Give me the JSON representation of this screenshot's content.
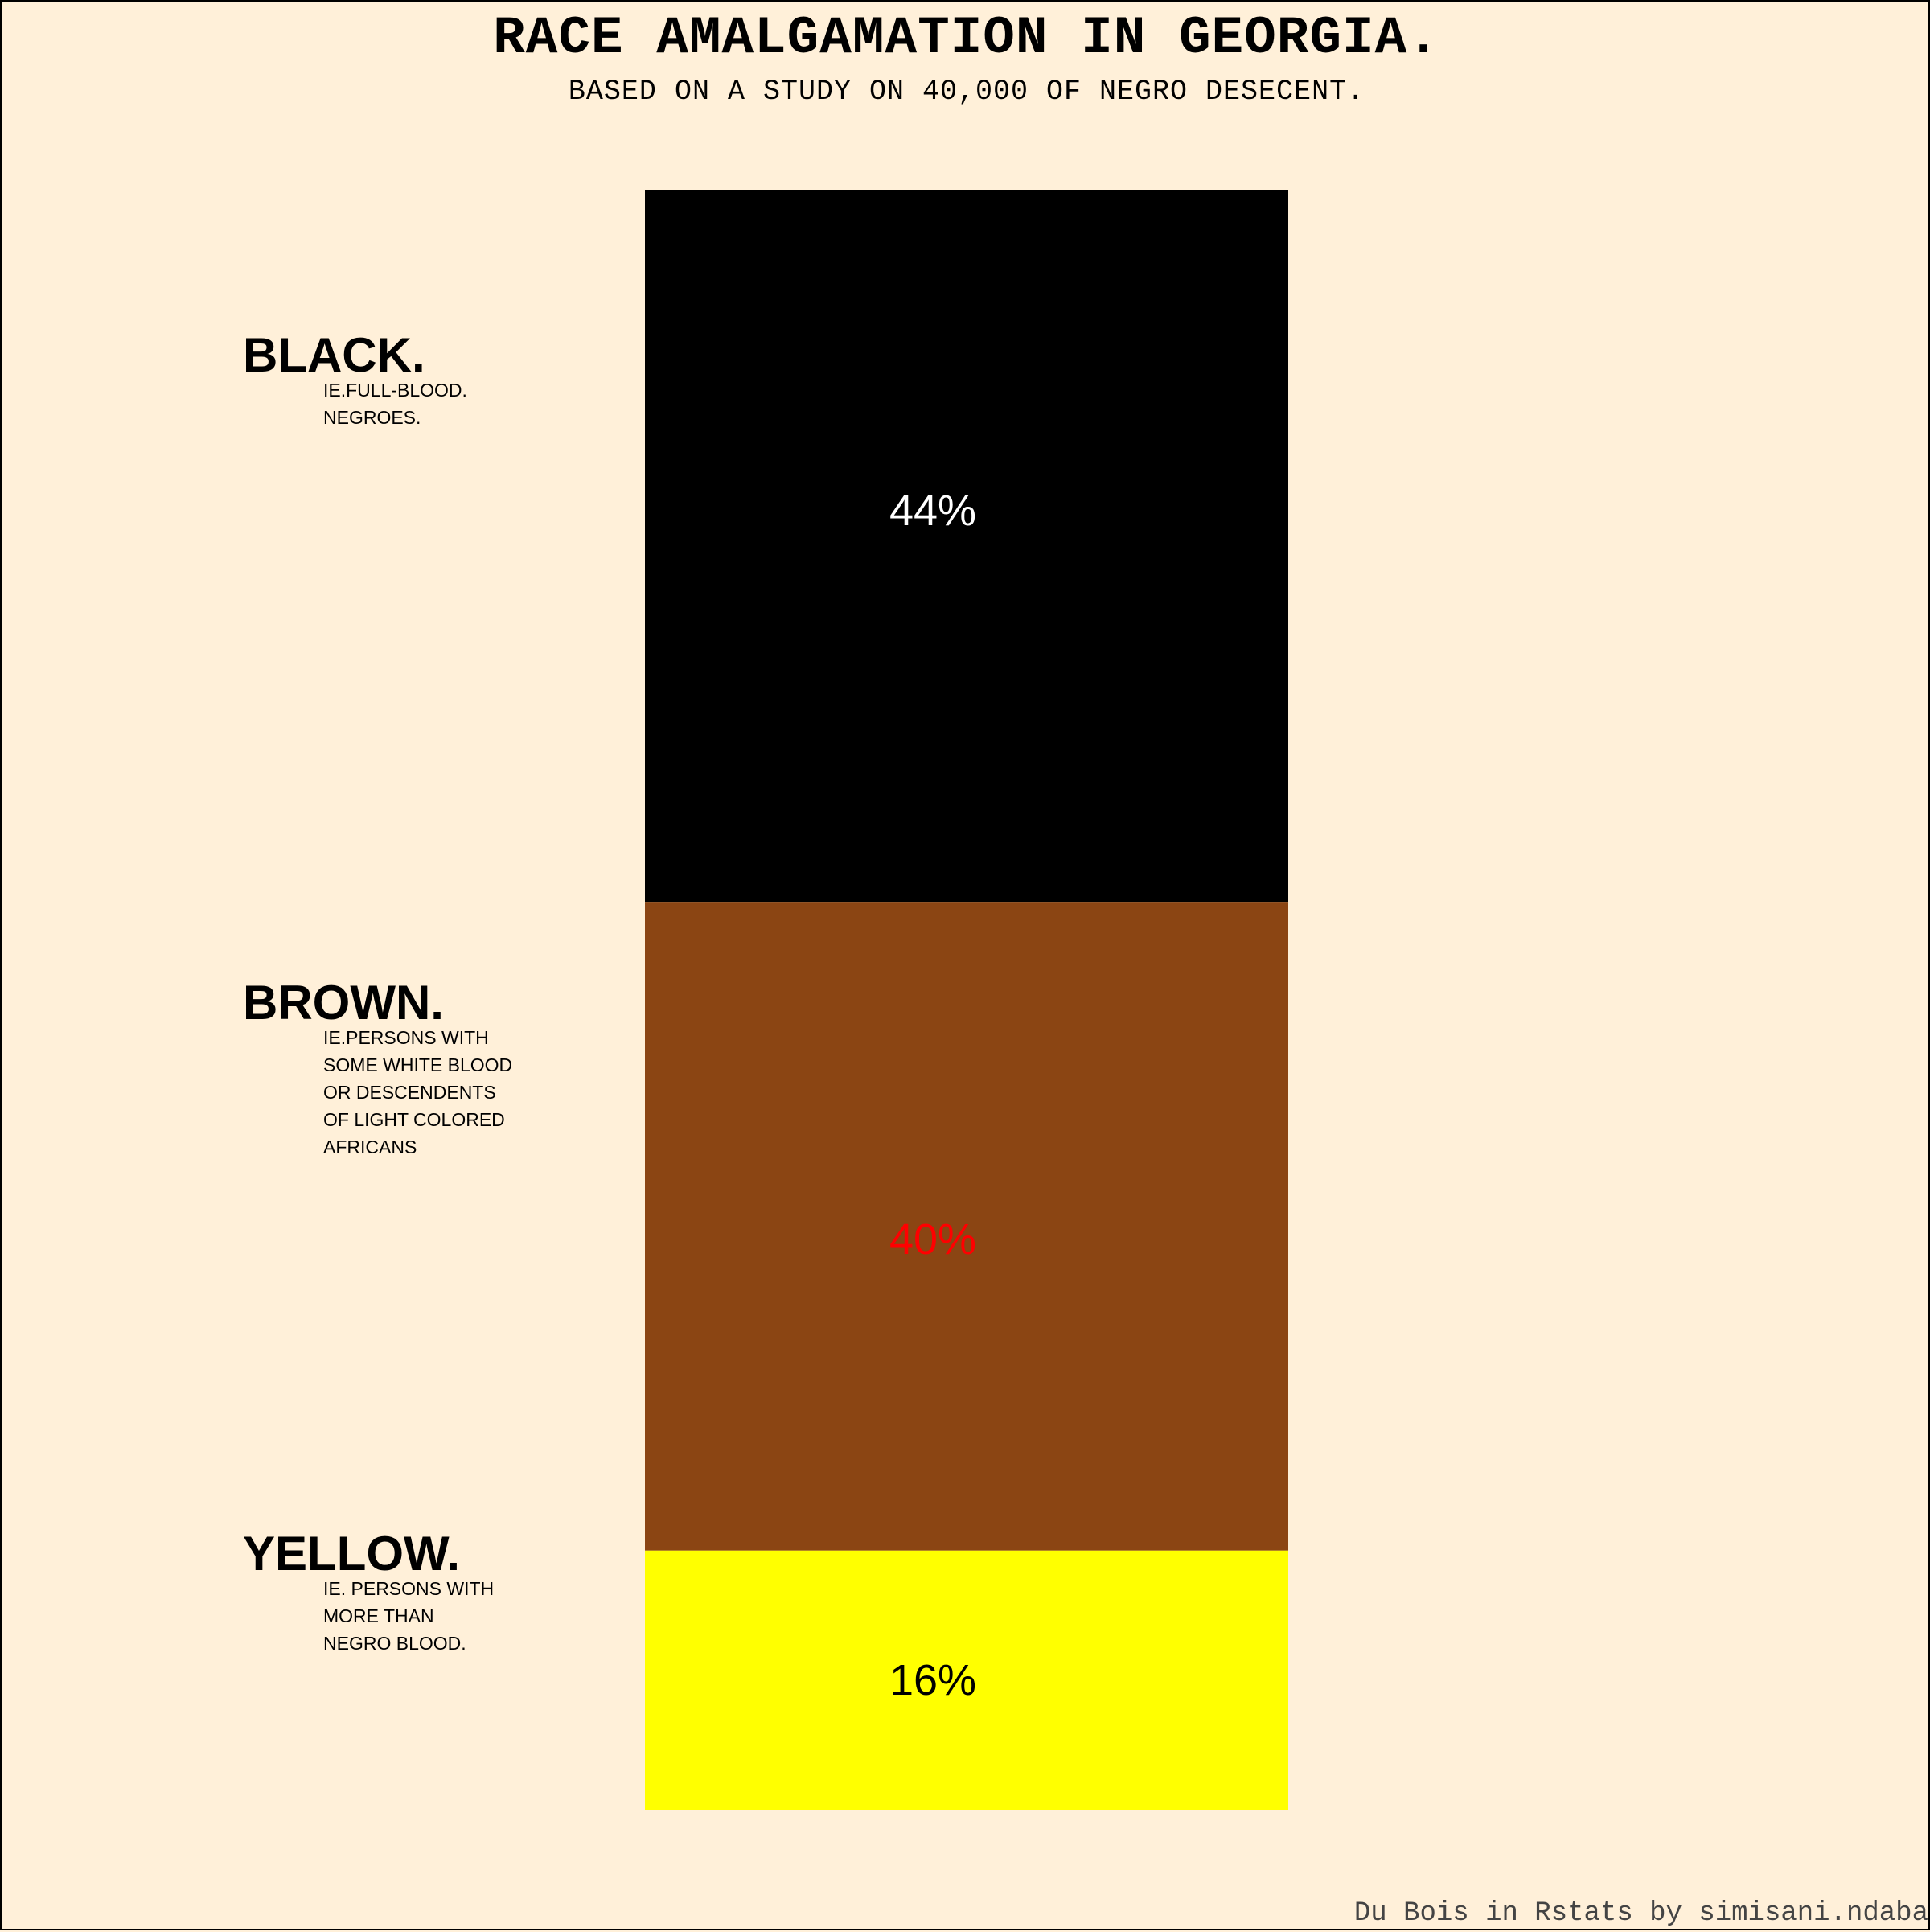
{
  "title": "RACE AMALGAMATION IN GEORGIA.",
  "subtitle": "BASED ON A STUDY ON 40,000 OF NEGRO DESECENT.",
  "credit": "Du Bois in Rstats by simisani.ndaba",
  "chart_data": {
    "type": "bar",
    "stacked": true,
    "ylim": [
      0,
      100
    ],
    "categories": [
      "BLACK.",
      "BROWN.",
      "YELLOW."
    ],
    "descriptions": [
      "IE.FULL-BLOOD.\nNEGROES.",
      "IE.PERSONS WITH\nSOME WHITE BLOOD\nOR DESCENDENTS\nOF LIGHT COLORED\nAFRICANS",
      "IE. PERSONS WITH\nMORE THAN\nNEGRO BLOOD."
    ],
    "values": [
      44,
      40,
      16
    ],
    "value_labels": [
      "44%",
      "40%",
      "16%"
    ],
    "colors": [
      "#000000",
      "#8b4513",
      "#ffff00"
    ],
    "label_colors": [
      "#ffffff",
      "#ff0000",
      "#000000"
    ]
  }
}
